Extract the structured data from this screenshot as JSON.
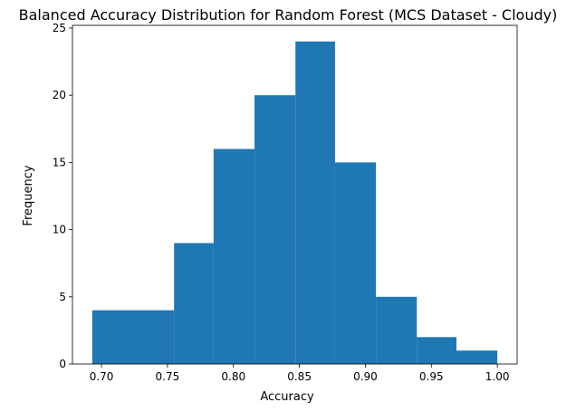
{
  "chart_data": {
    "type": "histogram",
    "title": "Balanced Accuracy Distribution for Random Forest (MCS Dataset - Cloudy)",
    "xlabel": "Accuracy",
    "ylabel": "Frequency",
    "bins": [
      {
        "x0": 0.693,
        "x1": 0.724,
        "count": 4
      },
      {
        "x0": 0.724,
        "x1": 0.755,
        "count": 4
      },
      {
        "x0": 0.755,
        "x1": 0.785,
        "count": 9
      },
      {
        "x0": 0.785,
        "x1": 0.816,
        "count": 16
      },
      {
        "x0": 0.816,
        "x1": 0.847,
        "count": 20
      },
      {
        "x0": 0.847,
        "x1": 0.877,
        "count": 24
      },
      {
        "x0": 0.877,
        "x1": 0.908,
        "count": 15
      },
      {
        "x0": 0.908,
        "x1": 0.939,
        "count": 5
      },
      {
        "x0": 0.939,
        "x1": 0.969,
        "count": 2
      },
      {
        "x0": 0.969,
        "x1": 1.0,
        "count": 1
      }
    ],
    "xlim": [
      0.678,
      1.015
    ],
    "ylim": [
      0,
      25.2
    ],
    "xticks": [
      0.7,
      0.75,
      0.8,
      0.85,
      0.9,
      0.95,
      1.0
    ],
    "xtick_labels": [
      "0.70",
      "0.75",
      "0.80",
      "0.85",
      "0.90",
      "0.95",
      "1.00"
    ],
    "yticks": [
      0,
      5,
      10,
      15,
      20,
      25
    ],
    "ytick_labels": [
      "0",
      "5",
      "10",
      "15",
      "20",
      "25"
    ],
    "bar_color": "#1f77b4",
    "grid": false,
    "legend": "none"
  }
}
